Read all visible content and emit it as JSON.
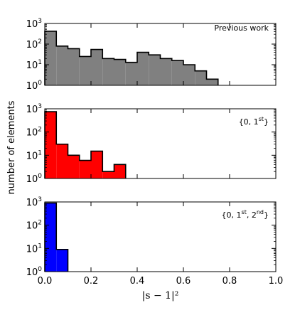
{
  "chart_data": {
    "type": "histogram",
    "shared_x": {
      "label": "|s − 1|²",
      "range": [
        0.0,
        1.0
      ],
      "ticks": [
        0.0,
        0.2,
        0.4,
        0.6,
        0.8,
        1.0
      ],
      "tick_labels": [
        "0.0",
        "0.2",
        "0.4",
        "0.6",
        "0.8",
        "1.0"
      ]
    },
    "shared_y": {
      "label": "number of elements",
      "scale": "log",
      "range": [
        1,
        1000
      ],
      "ticks": [
        1,
        10,
        100,
        1000
      ],
      "tick_labels": [
        {
          "base": "10",
          "exp": "0"
        },
        {
          "base": "10",
          "exp": "1"
        },
        {
          "base": "10",
          "exp": "2"
        },
        {
          "base": "10",
          "exp": "3"
        }
      ]
    },
    "bin_width": 0.05,
    "panels": [
      {
        "annotation": {
          "text": "Previous work"
        },
        "color": "#808080",
        "bins_start": [
          0.0,
          0.05,
          0.1,
          0.15,
          0.2,
          0.25,
          0.3,
          0.35,
          0.4,
          0.45,
          0.5,
          0.55,
          0.6,
          0.65,
          0.7
        ],
        "counts": [
          420,
          80,
          60,
          25,
          55,
          20,
          18,
          13,
          40,
          30,
          20,
          16,
          10,
          5,
          2
        ]
      },
      {
        "annotation": {
          "parts": [
            "{0, 1",
            "st",
            "}"
          ]
        },
        "color": "#ff0000",
        "bins_start": [
          0.0,
          0.05,
          0.1,
          0.15,
          0.2,
          0.25,
          0.3
        ],
        "counts": [
          750,
          30,
          10,
          6,
          15,
          2,
          4
        ]
      },
      {
        "annotation": {
          "parts": [
            "{0, 1",
            "st",
            ", 2",
            "nd",
            "}"
          ]
        },
        "color": "#0000ff",
        "bins_start": [
          0.0,
          0.05
        ],
        "counts": [
          900,
          9
        ]
      }
    ]
  }
}
